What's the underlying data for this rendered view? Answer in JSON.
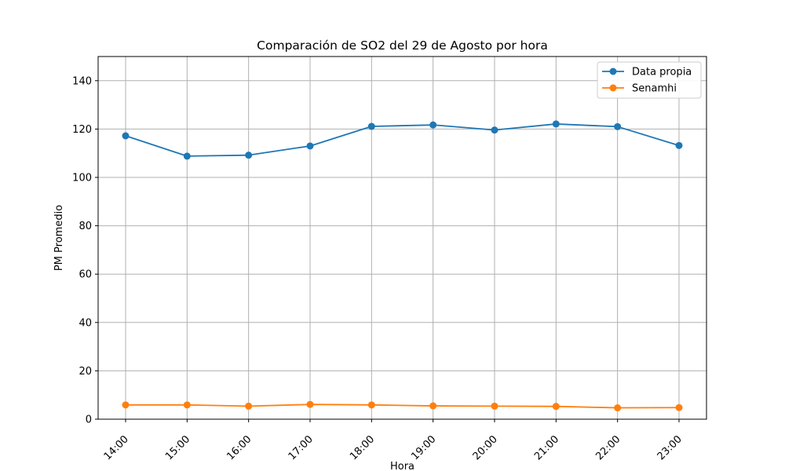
{
  "chart_data": {
    "type": "line",
    "title": "Comparación de SO2 del 29 de Agosto por hora",
    "xlabel": "Hora",
    "ylabel": "PM Promedio",
    "categories": [
      "14:00",
      "15:00",
      "16:00",
      "17:00",
      "18:00",
      "19:00",
      "20:00",
      "21:00",
      "22:00",
      "23:00"
    ],
    "ylim": [
      0,
      150
    ],
    "yticks": [
      0,
      20,
      40,
      60,
      80,
      100,
      120,
      140
    ],
    "grid": true,
    "legend_position": "top-right",
    "series": [
      {
        "name": "Data propia",
        "color": "#1f77b4",
        "values": [
          117.2,
          108.8,
          109.2,
          113.0,
          121.1,
          121.7,
          119.6,
          122.1,
          121.0,
          113.2
        ]
      },
      {
        "name": "Senamhi",
        "color": "#ff7f0e",
        "values": [
          5.9,
          5.9,
          5.4,
          6.1,
          5.9,
          5.5,
          5.4,
          5.3,
          4.7,
          4.8
        ]
      }
    ]
  }
}
